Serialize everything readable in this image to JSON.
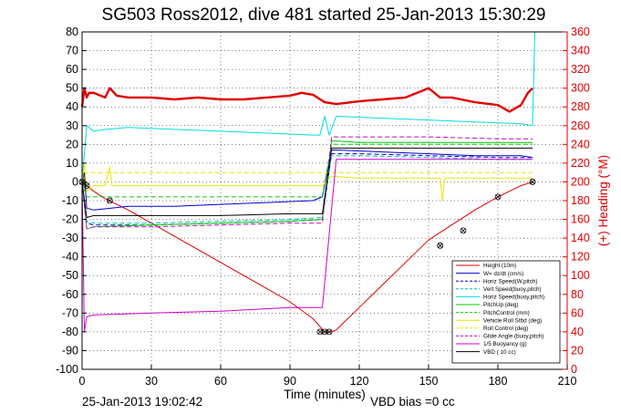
{
  "chart_data": {
    "type": "line",
    "title": "SG503 Ross2012, dive 481 started 25-Jan-2013 15:30:29",
    "xlabel": "Time (minutes)",
    "ylabel_right": "(+) Heading (°M)",
    "footer_left": "25-Jan-2013 19:02:42",
    "footer_right": "VBD bias =0 cc",
    "xlim": [
      0,
      210
    ],
    "ylim": [
      -100,
      80
    ],
    "ylim_right": [
      0,
      360
    ],
    "x_ticks": [
      0,
      30,
      60,
      90,
      120,
      150,
      180,
      210
    ],
    "y_ticks": [
      -100,
      -90,
      -80,
      -70,
      -60,
      -50,
      -40,
      -30,
      -20,
      -10,
      0,
      10,
      20,
      30,
      40,
      50,
      60,
      70,
      80
    ],
    "y_ticks_right": [
      0,
      20,
      40,
      60,
      80,
      100,
      120,
      140,
      160,
      180,
      200,
      220,
      240,
      260,
      280,
      300,
      320,
      340,
      360
    ],
    "grid": true,
    "legend_position": "bottom-right",
    "colors": {
      "heading": "#e00000",
      "axis_right": "#e00000"
    },
    "series": [
      {
        "name": "Height (10m)",
        "color": "#e00000",
        "style": "solid",
        "width": 1,
        "x": [
          0,
          5,
          10,
          20,
          30,
          40,
          50,
          60,
          70,
          80,
          90,
          100,
          105,
          108,
          110,
          115,
          120,
          130,
          140,
          150,
          160,
          170,
          180,
          190,
          195
        ],
        "y": [
          0,
          -5,
          -9,
          -15,
          -22,
          -29,
          -36,
          -43,
          -50,
          -57,
          -64,
          -73,
          -80,
          -80,
          -79,
          -73,
          -67,
          -55,
          -43,
          -31,
          -23,
          -15,
          -8,
          -2,
          0
        ]
      },
      {
        "name": "W= dz/dt (cm/s)",
        "color": "#0000cc",
        "style": "solid",
        "width": 1,
        "x": [
          0,
          1,
          2,
          5,
          20,
          40,
          60,
          80,
          100,
          104,
          106,
          108,
          110,
          130,
          150,
          170,
          190,
          195
        ],
        "y": [
          0,
          5,
          -14,
          -15,
          -13,
          -13,
          -12,
          -11,
          -10,
          -8,
          5,
          17,
          17,
          16,
          15,
          14,
          14,
          13
        ]
      },
      {
        "name": "Horiz Speed(W,pitch)",
        "color": "#0000cc",
        "style": "dashed",
        "width": 1,
        "x": [
          0,
          2,
          5,
          30,
          60,
          90,
          104,
          108,
          120,
          150,
          180,
          195
        ],
        "y": [
          0,
          -22,
          -23,
          -23,
          -22,
          -21,
          -20,
          15,
          15,
          14,
          13,
          13
        ]
      },
      {
        "name": "Vert Speed(buoy,pitch)",
        "color": "#00bbbb",
        "style": "dashed",
        "width": 1,
        "x": [
          0,
          2,
          5,
          30,
          60,
          90,
          104,
          108,
          120,
          150,
          180,
          195
        ],
        "y": [
          0,
          -21,
          -22,
          -22,
          -21,
          -20,
          -19,
          14,
          14,
          13,
          12,
          12
        ]
      },
      {
        "name": "Horiz Speed(buoy,pitch)",
        "color": "#00dddd",
        "style": "solid",
        "width": 1,
        "x": [
          0,
          2,
          5,
          10,
          20,
          40,
          60,
          80,
          100,
          103,
          105,
          107,
          110,
          130,
          150,
          170,
          190,
          195,
          196
        ],
        "y": [
          0,
          30,
          27,
          28,
          29,
          28,
          27,
          26,
          25,
          25,
          35,
          25,
          35,
          34,
          33,
          32,
          31,
          30,
          80
        ]
      },
      {
        "name": "PitchUp (deg)",
        "color": "#00cc00",
        "style": "solid",
        "width": 1,
        "x": [
          0,
          2,
          5,
          30,
          60,
          90,
          104,
          108,
          120,
          150,
          180,
          195
        ],
        "y": [
          0,
          -25,
          -24,
          -23,
          -22,
          -21,
          -20,
          22,
          21,
          21,
          21,
          21
        ]
      },
      {
        "name": "PitchControl (mm)",
        "color": "#00cc00",
        "style": "dashed",
        "width": 1,
        "x": [
          0,
          2,
          5,
          30,
          60,
          90,
          104,
          108,
          120,
          150,
          180,
          195
        ],
        "y": [
          0,
          -8,
          -8,
          -8,
          -8,
          -8,
          -8,
          20,
          20,
          20,
          20,
          20
        ]
      },
      {
        "name": "Vehicle Roll Stbd (deg)",
        "color": "#e6e600",
        "style": "solid",
        "width": 1,
        "x": [
          0,
          1,
          2,
          5,
          10,
          12,
          13,
          15,
          30,
          60,
          90,
          104,
          108,
          120,
          150,
          155,
          156,
          157,
          160,
          170,
          180,
          190,
          195
        ],
        "y": [
          0,
          10,
          -5,
          -2,
          -2,
          8,
          -2,
          -2,
          -2,
          -2,
          -2,
          -2,
          3,
          2,
          2,
          2,
          -10,
          2,
          2,
          2,
          2,
          2,
          2
        ]
      },
      {
        "name": "Roll Control (deg)",
        "color": "#e6e600",
        "style": "dashed",
        "width": 1,
        "x": [
          0,
          2,
          5,
          30,
          60,
          90,
          104,
          108,
          120,
          150,
          180,
          195
        ],
        "y": [
          0,
          5,
          5,
          5,
          5,
          5,
          5,
          5,
          5,
          5,
          5,
          5
        ]
      },
      {
        "name": "Glide Angle (buoy,pitch)",
        "color": "#cc00cc",
        "style": "dashed",
        "width": 1,
        "x": [
          0,
          2,
          5,
          30,
          60,
          90,
          104,
          108,
          120,
          150,
          180,
          195
        ],
        "y": [
          0,
          -25,
          -24,
          -24,
          -23,
          -22,
          -22,
          24,
          24,
          24,
          23,
          23
        ]
      },
      {
        "name": "1/5 Buoyancy (g)",
        "color": "#cc00cc",
        "style": "solid",
        "width": 1,
        "x": [
          0,
          1,
          2,
          5,
          30,
          60,
          90,
          104,
          110,
          140,
          170,
          190,
          195
        ],
        "y": [
          0,
          -80,
          -72,
          -71,
          -70,
          -69,
          -67,
          -67,
          12,
          12,
          12,
          12,
          12
        ]
      },
      {
        "name": "VBD ( 10 cc)",
        "color": "#000000",
        "style": "solid",
        "width": 1,
        "x": [
          0,
          2,
          5,
          30,
          60,
          90,
          104,
          108,
          120,
          150,
          180,
          195
        ],
        "y": [
          0,
          -19,
          -18,
          -18,
          -18,
          -17,
          -17,
          18,
          18,
          18,
          18,
          18
        ]
      }
    ],
    "heading": {
      "name": "(+) Heading (°M)",
      "color": "#e00000",
      "axis": "right",
      "x": [
        0,
        1,
        2,
        3,
        5,
        8,
        10,
        12,
        15,
        20,
        30,
        40,
        50,
        60,
        70,
        80,
        90,
        95,
        100,
        105,
        110,
        120,
        130,
        140,
        150,
        155,
        160,
        170,
        180,
        185,
        190,
        193,
        195
      ],
      "y": [
        280,
        300,
        290,
        295,
        295,
        292,
        290,
        300,
        292,
        290,
        290,
        288,
        290,
        288,
        288,
        290,
        292,
        295,
        293,
        285,
        283,
        286,
        288,
        290,
        300,
        290,
        290,
        285,
        282,
        275,
        282,
        295,
        300
      ]
    },
    "markers": {
      "type": "circle-x",
      "color": "#000000",
      "x": [
        0,
        2,
        12,
        103,
        105,
        107,
        155,
        165,
        180,
        195
      ],
      "y": [
        0,
        -2,
        -10,
        -80,
        -80,
        -80,
        -34,
        -26,
        -8,
        0
      ]
    }
  }
}
